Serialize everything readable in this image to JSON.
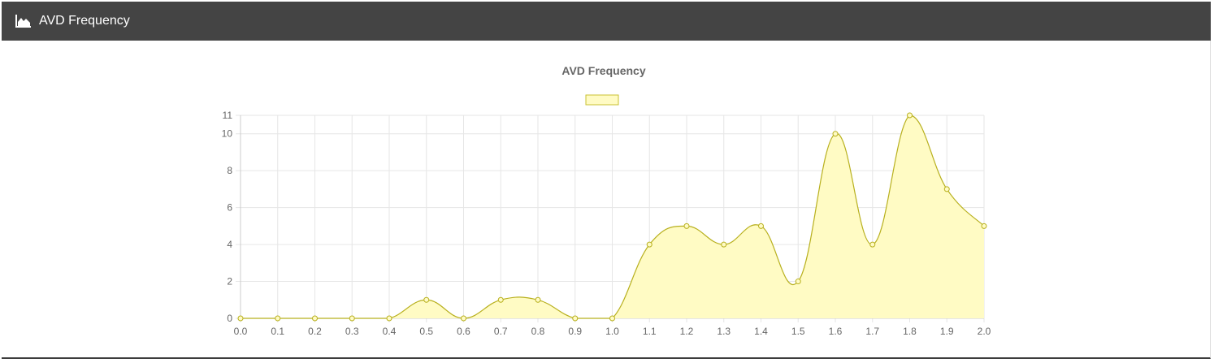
{
  "header": {
    "title": "AVD Frequency",
    "icon": "area-chart-icon"
  },
  "colors": {
    "header_bg": "#444444",
    "line": "#b8b01e",
    "fill": "#fffbc4",
    "legend_fill": "#fffbc4",
    "legend_border": "#c8c232",
    "grid": "#e6e6e6",
    "text": "#666666"
  },
  "chart_data": {
    "type": "area",
    "title": "AVD Frequency",
    "xlabel": "",
    "ylabel": "",
    "x": [
      "0.0",
      "0.1",
      "0.2",
      "0.3",
      "0.4",
      "0.5",
      "0.6",
      "0.7",
      "0.8",
      "0.9",
      "1.0",
      "1.1",
      "1.2",
      "1.3",
      "1.4",
      "1.5",
      "1.6",
      "1.7",
      "1.8",
      "1.9",
      "2.0"
    ],
    "series": [
      {
        "name": "",
        "values": [
          0,
          0,
          0,
          0,
          0,
          1,
          0,
          1,
          1,
          0,
          0,
          4,
          5,
          4,
          5,
          2,
          10,
          4,
          11,
          7,
          5
        ]
      }
    ],
    "ylim": [
      0,
      11
    ],
    "yticks": [
      0,
      2,
      4,
      6,
      8,
      10,
      11
    ],
    "grid": true,
    "legend": "top"
  }
}
